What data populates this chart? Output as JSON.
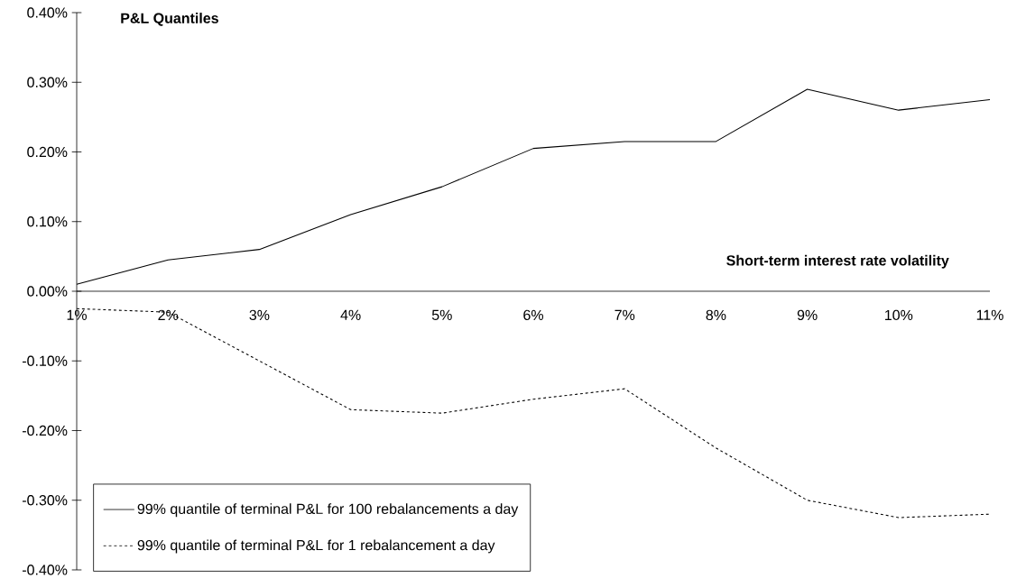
{
  "chart_data": {
    "type": "line",
    "title": "P&L Quantiles",
    "xlabel": "Short-term interest rate volatility",
    "categories": [
      "1%",
      "2%",
      "3%",
      "4%",
      "5%",
      "6%",
      "7%",
      "8%",
      "9%",
      "10%",
      "11%"
    ],
    "series": [
      {
        "name": "99% quantile of terminal P&L for 100 rebalancements a day",
        "color": "#000000",
        "line_style": "solid",
        "values": [
          0.01,
          0.045,
          0.06,
          0.11,
          0.15,
          0.205,
          0.215,
          0.215,
          0.29,
          0.26,
          0.275
        ]
      },
      {
        "name": "99% quantile of terminal P&L for 1 rebalancement a day",
        "color": "#000000",
        "line_style": "dotted",
        "values": [
          -0.025,
          -0.03,
          -0.1,
          -0.17,
          -0.175,
          -0.155,
          -0.14,
          -0.225,
          -0.3,
          -0.325,
          -0.32
        ]
      }
    ],
    "ylim": [
      -0.4,
      0.4
    ],
    "yticks": [
      {
        "value": -0.4,
        "label": "-0.40%"
      },
      {
        "value": -0.3,
        "label": "-0.30%"
      },
      {
        "value": -0.2,
        "label": "-0.20%"
      },
      {
        "value": -0.1,
        "label": "-0.10%"
      },
      {
        "value": 0,
        "label": "0.00%"
      },
      {
        "value": 0.1,
        "label": "0.10%"
      },
      {
        "value": 0.2,
        "label": "0.20%"
      },
      {
        "value": 0.3,
        "label": "0.30%"
      },
      {
        "value": 0.4,
        "label": "0.40%"
      }
    ],
    "grid": false,
    "legend": "bottom left",
    "marker": "none"
  }
}
